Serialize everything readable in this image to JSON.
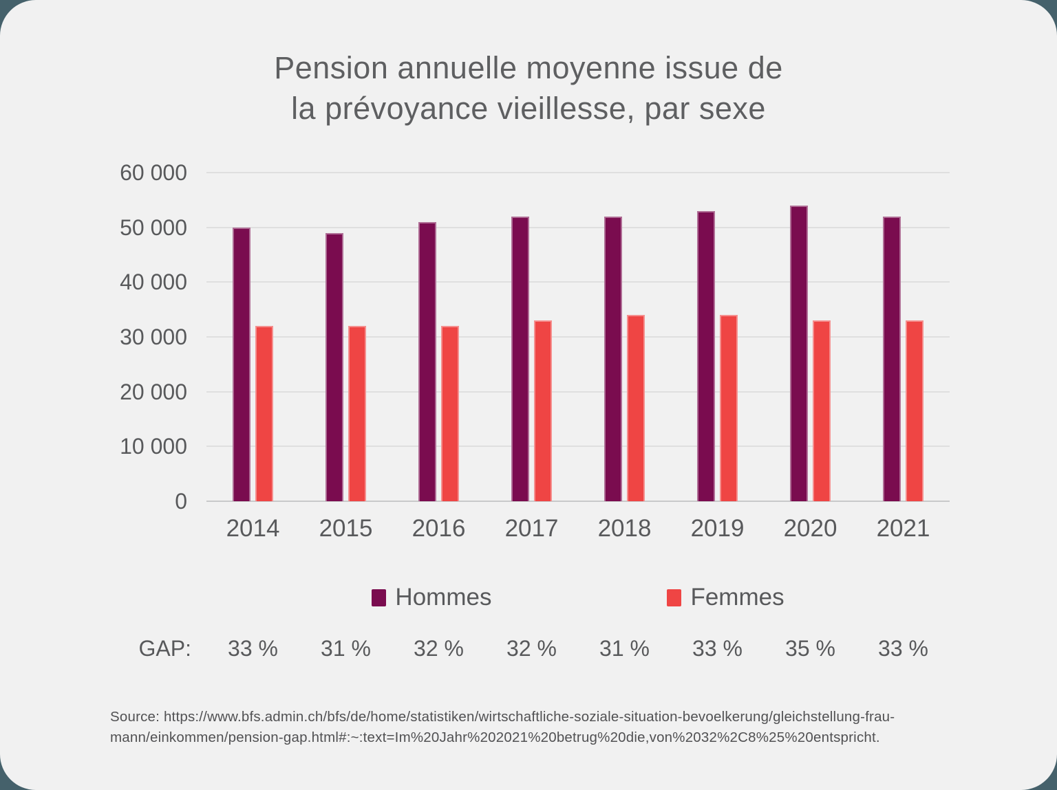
{
  "title": {
    "lines": [
      "Pension annuelle moyenne issue de",
      "la prévoyance vieillesse, par sexe"
    ]
  },
  "chart_data": {
    "type": "bar",
    "title": "Pension annuelle moyenne issue de la prévoyance vieillesse, par sexe",
    "categories": [
      "2014",
      "2015",
      "2016",
      "2017",
      "2018",
      "2019",
      "2020",
      "2021"
    ],
    "series": [
      {
        "name": "Hommes",
        "color": "#7A0C4F",
        "values": [
          50000,
          49000,
          51000,
          52000,
          52000,
          53000,
          54000,
          52000
        ]
      },
      {
        "name": "Femmes",
        "color": "#EF4544",
        "values": [
          32000,
          32000,
          32000,
          33000,
          34000,
          34000,
          33000,
          33000
        ]
      }
    ],
    "xlabel": "",
    "ylabel": "",
    "ylim": [
      0,
      60000
    ],
    "ytick_labels": [
      "0",
      "10 000",
      "20 000",
      "30 000",
      "40 000",
      "50 000",
      "60 000"
    ],
    "grid": true,
    "legend_position": "bottom"
  },
  "gap_row": {
    "label": "GAP:",
    "values": [
      "33 %",
      "31 %",
      "32 %",
      "32 %",
      "31 %",
      "33 %",
      "35 %",
      "33 %"
    ]
  },
  "source": {
    "lines": [
      "Source: https://www.bfs.admin.ch/bfs/de/home/statistiken/wirtschaftliche-soziale-situation-bevoelkerung/gleichstellung-frau-",
      "mann/einkommen/pension-gap.html#:~:text=Im%20Jahr%202021%20betrug%20die,von%2032%2C8%25%20entspricht."
    ]
  },
  "colors": {
    "bg": "#45616B",
    "card": "#F1F1F1",
    "text": "#58595B",
    "title": "#5E5F61",
    "grid": "#DFDFDF",
    "axis": "#C8C9CA",
    "source": "#515153"
  }
}
